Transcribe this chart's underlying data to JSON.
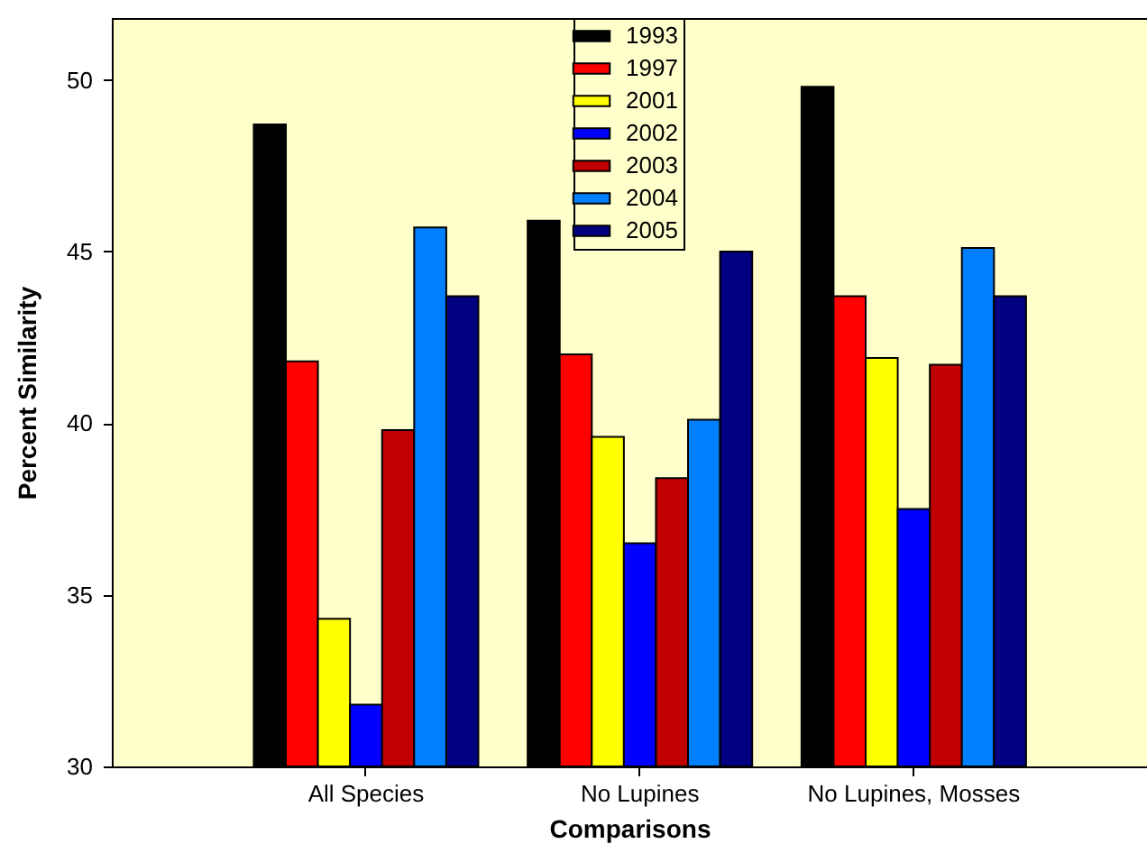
{
  "chart_data": {
    "type": "bar",
    "xlabel": "Comparisons",
    "ylabel": "Percent Similarity",
    "categories": [
      "All Species",
      "No Lupines",
      "No Lupines, Mosses"
    ],
    "ylim": [
      30,
      51.8
    ],
    "yticks": [
      30,
      35,
      40,
      45,
      50
    ],
    "grid": false,
    "legend": "top",
    "series": [
      {
        "name": "1993",
        "color": "#000000",
        "values": [
          48.7,
          45.9,
          49.8
        ]
      },
      {
        "name": "1997",
        "color": "#ff0000",
        "values": [
          41.8,
          42.0,
          43.7
        ]
      },
      {
        "name": "2001",
        "color": "#ffff00",
        "values": [
          34.3,
          39.6,
          41.9
        ]
      },
      {
        "name": "2002",
        "color": "#0000ff",
        "values": [
          31.8,
          36.5,
          37.5
        ]
      },
      {
        "name": "2003",
        "color": "#c00000",
        "values": [
          39.8,
          38.4,
          41.7
        ]
      },
      {
        "name": "2004",
        "color": "#0080ff",
        "values": [
          45.7,
          40.1,
          45.1
        ]
      },
      {
        "name": "2005",
        "color": "#000080",
        "values": [
          43.7,
          45.0,
          43.7
        ]
      }
    ]
  }
}
